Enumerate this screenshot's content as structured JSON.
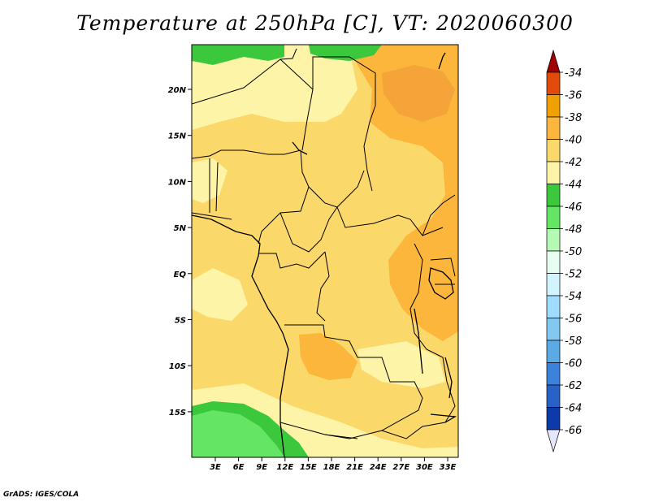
{
  "title": "Temperature at 250hPa [C], VT: 2020060300",
  "credit": "GrADS: IGES/COLA",
  "map": {
    "lat_ticks": [
      "20N",
      "15N",
      "10N",
      "5N",
      "EQ",
      "5S",
      "10S",
      "15S"
    ],
    "lon_ticks": [
      "3E",
      "6E",
      "9E",
      "12E",
      "15E",
      "18E",
      "21E",
      "24E",
      "27E",
      "30E",
      "33E"
    ]
  },
  "colorbar": {
    "labels": [
      "-34",
      "-36",
      "-38",
      "-40",
      "-42",
      "-44",
      "-46",
      "-48",
      "-50",
      "-52",
      "-54",
      "-56",
      "-58",
      "-60",
      "-62",
      "-64",
      "-66"
    ],
    "colors": [
      "#a00000",
      "#e24b0a",
      "#f0a000",
      "#fbb63b",
      "#fbd86a",
      "#fdf4a8",
      "#3cc83c",
      "#64e664",
      "#b4f9b4",
      "#e6fff0",
      "#d2f4ff",
      "#a0dcff",
      "#82c8f0",
      "#5aaae6",
      "#3c82dc",
      "#2861c8",
      "#0c3aaa",
      "#000a6e",
      "#e6e6ff"
    ]
  }
}
